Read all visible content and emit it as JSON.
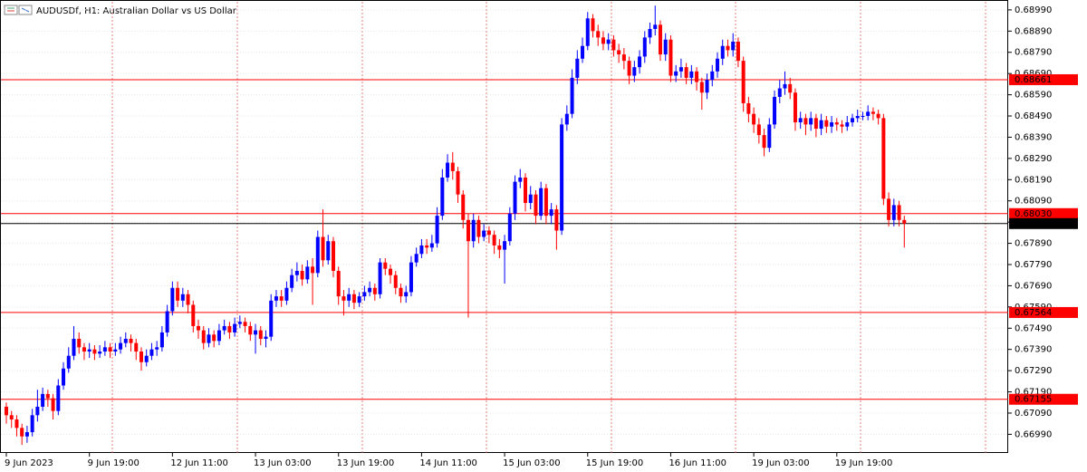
{
  "chart_data": {
    "type": "candlestick",
    "title": "AUDUSDf, H1:  Australian Dollar vs US Dollar",
    "up_color": "#0000ff",
    "down_color": "#ff0000",
    "grid": true,
    "ylim": [
      0.66902,
      0.69028
    ],
    "yticks": [
      {
        "value": 0.6699,
        "label": "0.66990"
      },
      {
        "value": 0.6709,
        "label": "0.67090"
      },
      {
        "value": 0.6719,
        "label": "0.67190"
      },
      {
        "value": 0.6729,
        "label": "0.67290"
      },
      {
        "value": 0.6739,
        "label": "0.67390"
      },
      {
        "value": 0.6749,
        "label": "0.67490"
      },
      {
        "value": 0.6759,
        "label": "0.67590"
      },
      {
        "value": 0.6769,
        "label": "0.67690"
      },
      {
        "value": 0.6779,
        "label": "0.67790"
      },
      {
        "value": 0.6789,
        "label": "0.67890"
      },
      {
        "value": 0.6799,
        "label": "0.67990"
      },
      {
        "value": 0.6809,
        "label": "0.68090"
      },
      {
        "value": 0.6819,
        "label": "0.68190"
      },
      {
        "value": 0.6829,
        "label": "0.68290"
      },
      {
        "value": 0.6839,
        "label": "0.68390"
      },
      {
        "value": 0.6849,
        "label": "0.68490"
      },
      {
        "value": 0.6859,
        "label": "0.68590"
      },
      {
        "value": 0.6869,
        "label": "0.68690"
      },
      {
        "value": 0.6879,
        "label": "0.68790"
      },
      {
        "value": 0.6889,
        "label": "0.68890"
      },
      {
        "value": 0.6899,
        "label": "0.68990"
      }
    ],
    "levels": [
      {
        "value": 0.68661,
        "label": "0.68661",
        "color": "#ff0000"
      },
      {
        "value": 0.6803,
        "label": "0.68030",
        "color": "#ff0000"
      },
      {
        "value": 0.67983,
        "label": "0.67983",
        "color": "#000000"
      },
      {
        "value": 0.67564,
        "label": "0.67564",
        "color": "#ff0000"
      },
      {
        "value": 0.67155,
        "label": "0.67155",
        "color": "#ff0000"
      }
    ],
    "categories": [
      "9 Jun 2023",
      null,
      null,
      null,
      null,
      null,
      null,
      null,
      null,
      null,
      null,
      null,
      null,
      null,
      null,
      null,
      "9 Jun 19:00",
      null,
      null,
      null,
      null,
      null,
      null,
      null,
      null,
      null,
      null,
      null,
      null,
      null,
      null,
      null,
      "12 Jun 11:00",
      null,
      null,
      null,
      null,
      null,
      null,
      null,
      null,
      null,
      null,
      null,
      null,
      null,
      null,
      null,
      "13 Jun 03:00",
      null,
      null,
      null,
      null,
      null,
      null,
      null,
      null,
      null,
      null,
      null,
      null,
      null,
      null,
      null,
      "13 Jun 19:00",
      null,
      null,
      null,
      null,
      null,
      null,
      null,
      null,
      null,
      null,
      null,
      null,
      null,
      null,
      null,
      "14 Jun 11:00",
      null,
      null,
      null,
      null,
      null,
      null,
      null,
      null,
      null,
      null,
      null,
      null,
      null,
      null,
      null,
      "15 Jun 03:00",
      null,
      null,
      null,
      null,
      null,
      null,
      null,
      null,
      null,
      null,
      null,
      null,
      null,
      null,
      null,
      "15 Jun 19:00",
      null,
      null,
      null,
      null,
      null,
      null,
      null,
      null,
      null,
      null,
      null,
      null,
      null,
      null,
      null,
      "16 Jun 11:00",
      null,
      null,
      null,
      null,
      null,
      null,
      null,
      null,
      null,
      null,
      null,
      null,
      null,
      null,
      null,
      "19 Jun 03:00",
      null,
      null,
      null,
      null,
      null,
      null,
      null,
      null,
      null,
      null,
      null,
      null,
      null,
      null,
      null,
      "19 Jun 19:00",
      null,
      null,
      null,
      null,
      null,
      null,
      null,
      null,
      null,
      null,
      null,
      null,
      null
    ],
    "open": [
      0.6712,
      0.6708,
      0.6706,
      0.6702,
      0.6698,
      0.67,
      0.6708,
      0.6712,
      0.6718,
      0.6716,
      0.671,
      0.6722,
      0.673,
      0.6736,
      0.6744,
      0.674,
      0.6738,
      0.6739,
      0.6737,
      0.6738,
      0.674,
      0.6738,
      0.6739,
      0.6742,
      0.6744,
      0.6742,
      0.6738,
      0.6733,
      0.6736,
      0.6739,
      0.674,
      0.6747,
      0.6757,
      0.6768,
      0.6762,
      0.6765,
      0.676,
      0.675,
      0.6748,
      0.6742,
      0.6746,
      0.6743,
      0.6748,
      0.675,
      0.6747,
      0.6751,
      0.6752,
      0.675,
      0.6746,
      0.6748,
      0.6744,
      0.6745,
      0.6762,
      0.6764,
      0.6762,
      0.6768,
      0.6774,
      0.6776,
      0.6772,
      0.6778,
      0.6775,
      0.6792,
      0.6781,
      0.679,
      0.6776,
      0.6764,
      0.6762,
      0.6765,
      0.6761,
      0.6764,
      0.6766,
      0.6768,
      0.6765,
      0.678,
      0.6777,
      0.6774,
      0.6768,
      0.6764,
      0.6766,
      0.678,
      0.6784,
      0.6788,
      0.6787,
      0.6789,
      0.6802,
      0.682,
      0.6827,
      0.6823,
      0.6812,
      0.68,
      0.679,
      0.68,
      0.6792,
      0.6795,
      0.6793,
      0.6788,
      0.6786,
      0.679,
      0.6803,
      0.6818,
      0.682,
      0.6808,
      0.6812,
      0.6802,
      0.6815,
      0.6802,
      0.6805,
      0.6795,
      0.6845,
      0.685,
      0.6867,
      0.6876,
      0.6882,
      0.6895,
      0.6889,
      0.6886,
      0.6883,
      0.6885,
      0.688,
      0.6878,
      0.6875,
      0.6868,
      0.6872,
      0.6877,
      0.6886,
      0.689,
      0.6892,
      0.6878,
      0.6885,
      0.6868,
      0.687,
      0.6872,
      0.6867,
      0.687,
      0.6865,
      0.686,
      0.6866,
      0.687,
      0.6876,
      0.6882,
      0.688,
      0.6884,
      0.6875,
      0.6855,
      0.685,
      0.6845,
      0.684,
      0.6834,
      0.6845,
      0.6858,
      0.6862,
      0.6864,
      0.686,
      0.6846,
      0.6848,
      0.6845,
      0.6848,
      0.6843,
      0.6847,
      0.6844,
      0.6846,
      0.6845,
      0.6844,
      0.6846,
      0.6848,
      0.6849,
      0.6849,
      0.6851,
      0.685,
      0.6848,
      0.681,
      0.68,
      0.6807,
      0.68
    ],
    "high": [
      0.6714,
      0.671,
      0.6708,
      0.6704,
      0.6703,
      0.6711,
      0.672,
      0.6721,
      0.672,
      0.6718,
      0.6725,
      0.6733,
      0.674,
      0.675,
      0.6747,
      0.6742,
      0.6742,
      0.6741,
      0.6741,
      0.6743,
      0.6742,
      0.6742,
      0.6745,
      0.6747,
      0.6746,
      0.6744,
      0.674,
      0.6739,
      0.6742,
      0.6743,
      0.675,
      0.676,
      0.6771,
      0.6771,
      0.6768,
      0.6767,
      0.6762,
      0.6753,
      0.675,
      0.6749,
      0.6748,
      0.6751,
      0.6753,
      0.6752,
      0.6754,
      0.6755,
      0.6754,
      0.6752,
      0.6751,
      0.675,
      0.6748,
      0.6765,
      0.6767,
      0.6767,
      0.6771,
      0.6777,
      0.678,
      0.6779,
      0.6781,
      0.6782,
      0.6795,
      0.6805,
      0.6793,
      0.6792,
      0.6778,
      0.6767,
      0.6768,
      0.6767,
      0.6766,
      0.6769,
      0.6771,
      0.677,
      0.6782,
      0.6782,
      0.6779,
      0.6776,
      0.677,
      0.6769,
      0.6783,
      0.6787,
      0.6791,
      0.6791,
      0.6793,
      0.6806,
      0.6824,
      0.6831,
      0.6832,
      0.6825,
      0.6814,
      0.6803,
      0.6803,
      0.6802,
      0.6798,
      0.6797,
      0.6795,
      0.6791,
      0.6793,
      0.6806,
      0.6821,
      0.6824,
      0.6822,
      0.6816,
      0.6814,
      0.6818,
      0.6817,
      0.6808,
      0.6807,
      0.6848,
      0.6854,
      0.6871,
      0.688,
      0.6886,
      0.6898,
      0.6897,
      0.6892,
      0.6889,
      0.6888,
      0.6887,
      0.6883,
      0.6881,
      0.6877,
      0.6875,
      0.688,
      0.6889,
      0.6893,
      0.6901,
      0.6894,
      0.6888,
      0.6887,
      0.6873,
      0.6876,
      0.6874,
      0.6873,
      0.6872,
      0.6867,
      0.6869,
      0.6873,
      0.6879,
      0.6885,
      0.6885,
      0.6888,
      0.6886,
      0.6877,
      0.6858,
      0.6853,
      0.6848,
      0.6843,
      0.6848,
      0.6861,
      0.6866,
      0.687,
      0.6867,
      0.6862,
      0.6851,
      0.685,
      0.6851,
      0.685,
      0.685,
      0.6849,
      0.6849,
      0.6848,
      0.6847,
      0.6849,
      0.685,
      0.6852,
      0.6851,
      0.6854,
      0.6853,
      0.6852,
      0.685,
      0.6813,
      0.681,
      0.6809,
      0.6802
    ],
    "low": [
      0.6704,
      0.6702,
      0.6698,
      0.6694,
      0.6695,
      0.6698,
      0.6705,
      0.671,
      0.6712,
      0.6706,
      0.6708,
      0.672,
      0.6728,
      0.6734,
      0.6737,
      0.6734,
      0.6735,
      0.6734,
      0.6735,
      0.6736,
      0.6735,
      0.6736,
      0.6737,
      0.674,
      0.6738,
      0.6734,
      0.6729,
      0.6731,
      0.6734,
      0.6736,
      0.6738,
      0.6745,
      0.6755,
      0.6759,
      0.6759,
      0.6756,
      0.6747,
      0.6744,
      0.6739,
      0.674,
      0.674,
      0.6741,
      0.6746,
      0.6744,
      0.6745,
      0.6749,
      0.6747,
      0.6743,
      0.6737,
      0.6741,
      0.674,
      0.6743,
      0.6759,
      0.6759,
      0.676,
      0.6766,
      0.6771,
      0.6769,
      0.677,
      0.676,
      0.6773,
      0.6778,
      0.6779,
      0.6773,
      0.676,
      0.6755,
      0.6759,
      0.6758,
      0.6759,
      0.6762,
      0.6764,
      0.6762,
      0.6763,
      0.6774,
      0.677,
      0.6765,
      0.6761,
      0.6761,
      0.6764,
      0.6778,
      0.6782,
      0.6784,
      0.6785,
      0.6787,
      0.68,
      0.6818,
      0.6819,
      0.6808,
      0.6796,
      0.6754,
      0.6787,
      0.6789,
      0.679,
      0.6789,
      0.6784,
      0.6782,
      0.677,
      0.6788,
      0.68,
      0.6815,
      0.6804,
      0.6805,
      0.6798,
      0.68,
      0.6798,
      0.6798,
      0.6786,
      0.6793,
      0.6842,
      0.6848,
      0.6864,
      0.6874,
      0.688,
      0.6886,
      0.6882,
      0.688,
      0.688,
      0.6877,
      0.6874,
      0.6871,
      0.6864,
      0.6865,
      0.6869,
      0.6874,
      0.6883,
      0.6887,
      0.6875,
      0.6875,
      0.6865,
      0.6865,
      0.6867,
      0.6864,
      0.6864,
      0.6861,
      0.6852,
      0.6857,
      0.6863,
      0.6867,
      0.6873,
      0.6877,
      0.6877,
      0.6872,
      0.6851,
      0.6846,
      0.6841,
      0.6836,
      0.683,
      0.6832,
      0.6843,
      0.6855,
      0.6859,
      0.6857,
      0.6842,
      0.6843,
      0.684,
      0.6842,
      0.6839,
      0.684,
      0.6841,
      0.6841,
      0.6842,
      0.6841,
      0.6842,
      0.6844,
      0.6846,
      0.6847,
      0.6847,
      0.6847,
      0.6845,
      0.6807,
      0.6797,
      0.6797,
      0.6797,
      0.6787
    ],
    "close": [
      0.6708,
      0.6706,
      0.6702,
      0.6698,
      0.67,
      0.6708,
      0.6712,
      0.6718,
      0.6716,
      0.671,
      0.6722,
      0.673,
      0.6736,
      0.6744,
      0.674,
      0.6738,
      0.6739,
      0.6737,
      0.6738,
      0.674,
      0.6738,
      0.6739,
      0.6742,
      0.6744,
      0.6742,
      0.6738,
      0.6733,
      0.6736,
      0.6739,
      0.674,
      0.6747,
      0.6757,
      0.6768,
      0.6762,
      0.6765,
      0.676,
      0.675,
      0.6748,
      0.6742,
      0.6746,
      0.6743,
      0.6748,
      0.675,
      0.6747,
      0.6751,
      0.6752,
      0.675,
      0.6746,
      0.6748,
      0.6744,
      0.6745,
      0.6762,
      0.6764,
      0.6762,
      0.6768,
      0.6774,
      0.6776,
      0.6772,
      0.6778,
      0.6775,
      0.6792,
      0.6781,
      0.679,
      0.6776,
      0.6764,
      0.6762,
      0.6765,
      0.6761,
      0.6764,
      0.6766,
      0.6768,
      0.6765,
      0.678,
      0.6777,
      0.6774,
      0.6768,
      0.6764,
      0.6766,
      0.678,
      0.6784,
      0.6788,
      0.6787,
      0.6789,
      0.6802,
      0.682,
      0.6827,
      0.6823,
      0.6812,
      0.68,
      0.679,
      0.68,
      0.6792,
      0.6795,
      0.6793,
      0.6788,
      0.6786,
      0.679,
      0.6803,
      0.6818,
      0.682,
      0.6808,
      0.6812,
      0.6802,
      0.6815,
      0.6802,
      0.6805,
      0.6795,
      0.6845,
      0.685,
      0.6867,
      0.6876,
      0.6882,
      0.6895,
      0.6889,
      0.6886,
      0.6883,
      0.6885,
      0.688,
      0.6878,
      0.6875,
      0.6868,
      0.6872,
      0.6877,
      0.6886,
      0.689,
      0.6892,
      0.6878,
      0.6885,
      0.6868,
      0.687,
      0.6872,
      0.6867,
      0.687,
      0.6865,
      0.686,
      0.6866,
      0.687,
      0.6876,
      0.6882,
      0.688,
      0.6884,
      0.6875,
      0.6855,
      0.685,
      0.6845,
      0.684,
      0.6834,
      0.6845,
      0.6858,
      0.6862,
      0.6864,
      0.686,
      0.6846,
      0.6848,
      0.6845,
      0.6848,
      0.6843,
      0.6847,
      0.6844,
      0.6846,
      0.6845,
      0.6844,
      0.6846,
      0.6848,
      0.6849,
      0.6849,
      0.6851,
      0.685,
      0.6848,
      0.681,
      0.68,
      0.6807,
      0.68,
      0.67983
    ]
  }
}
